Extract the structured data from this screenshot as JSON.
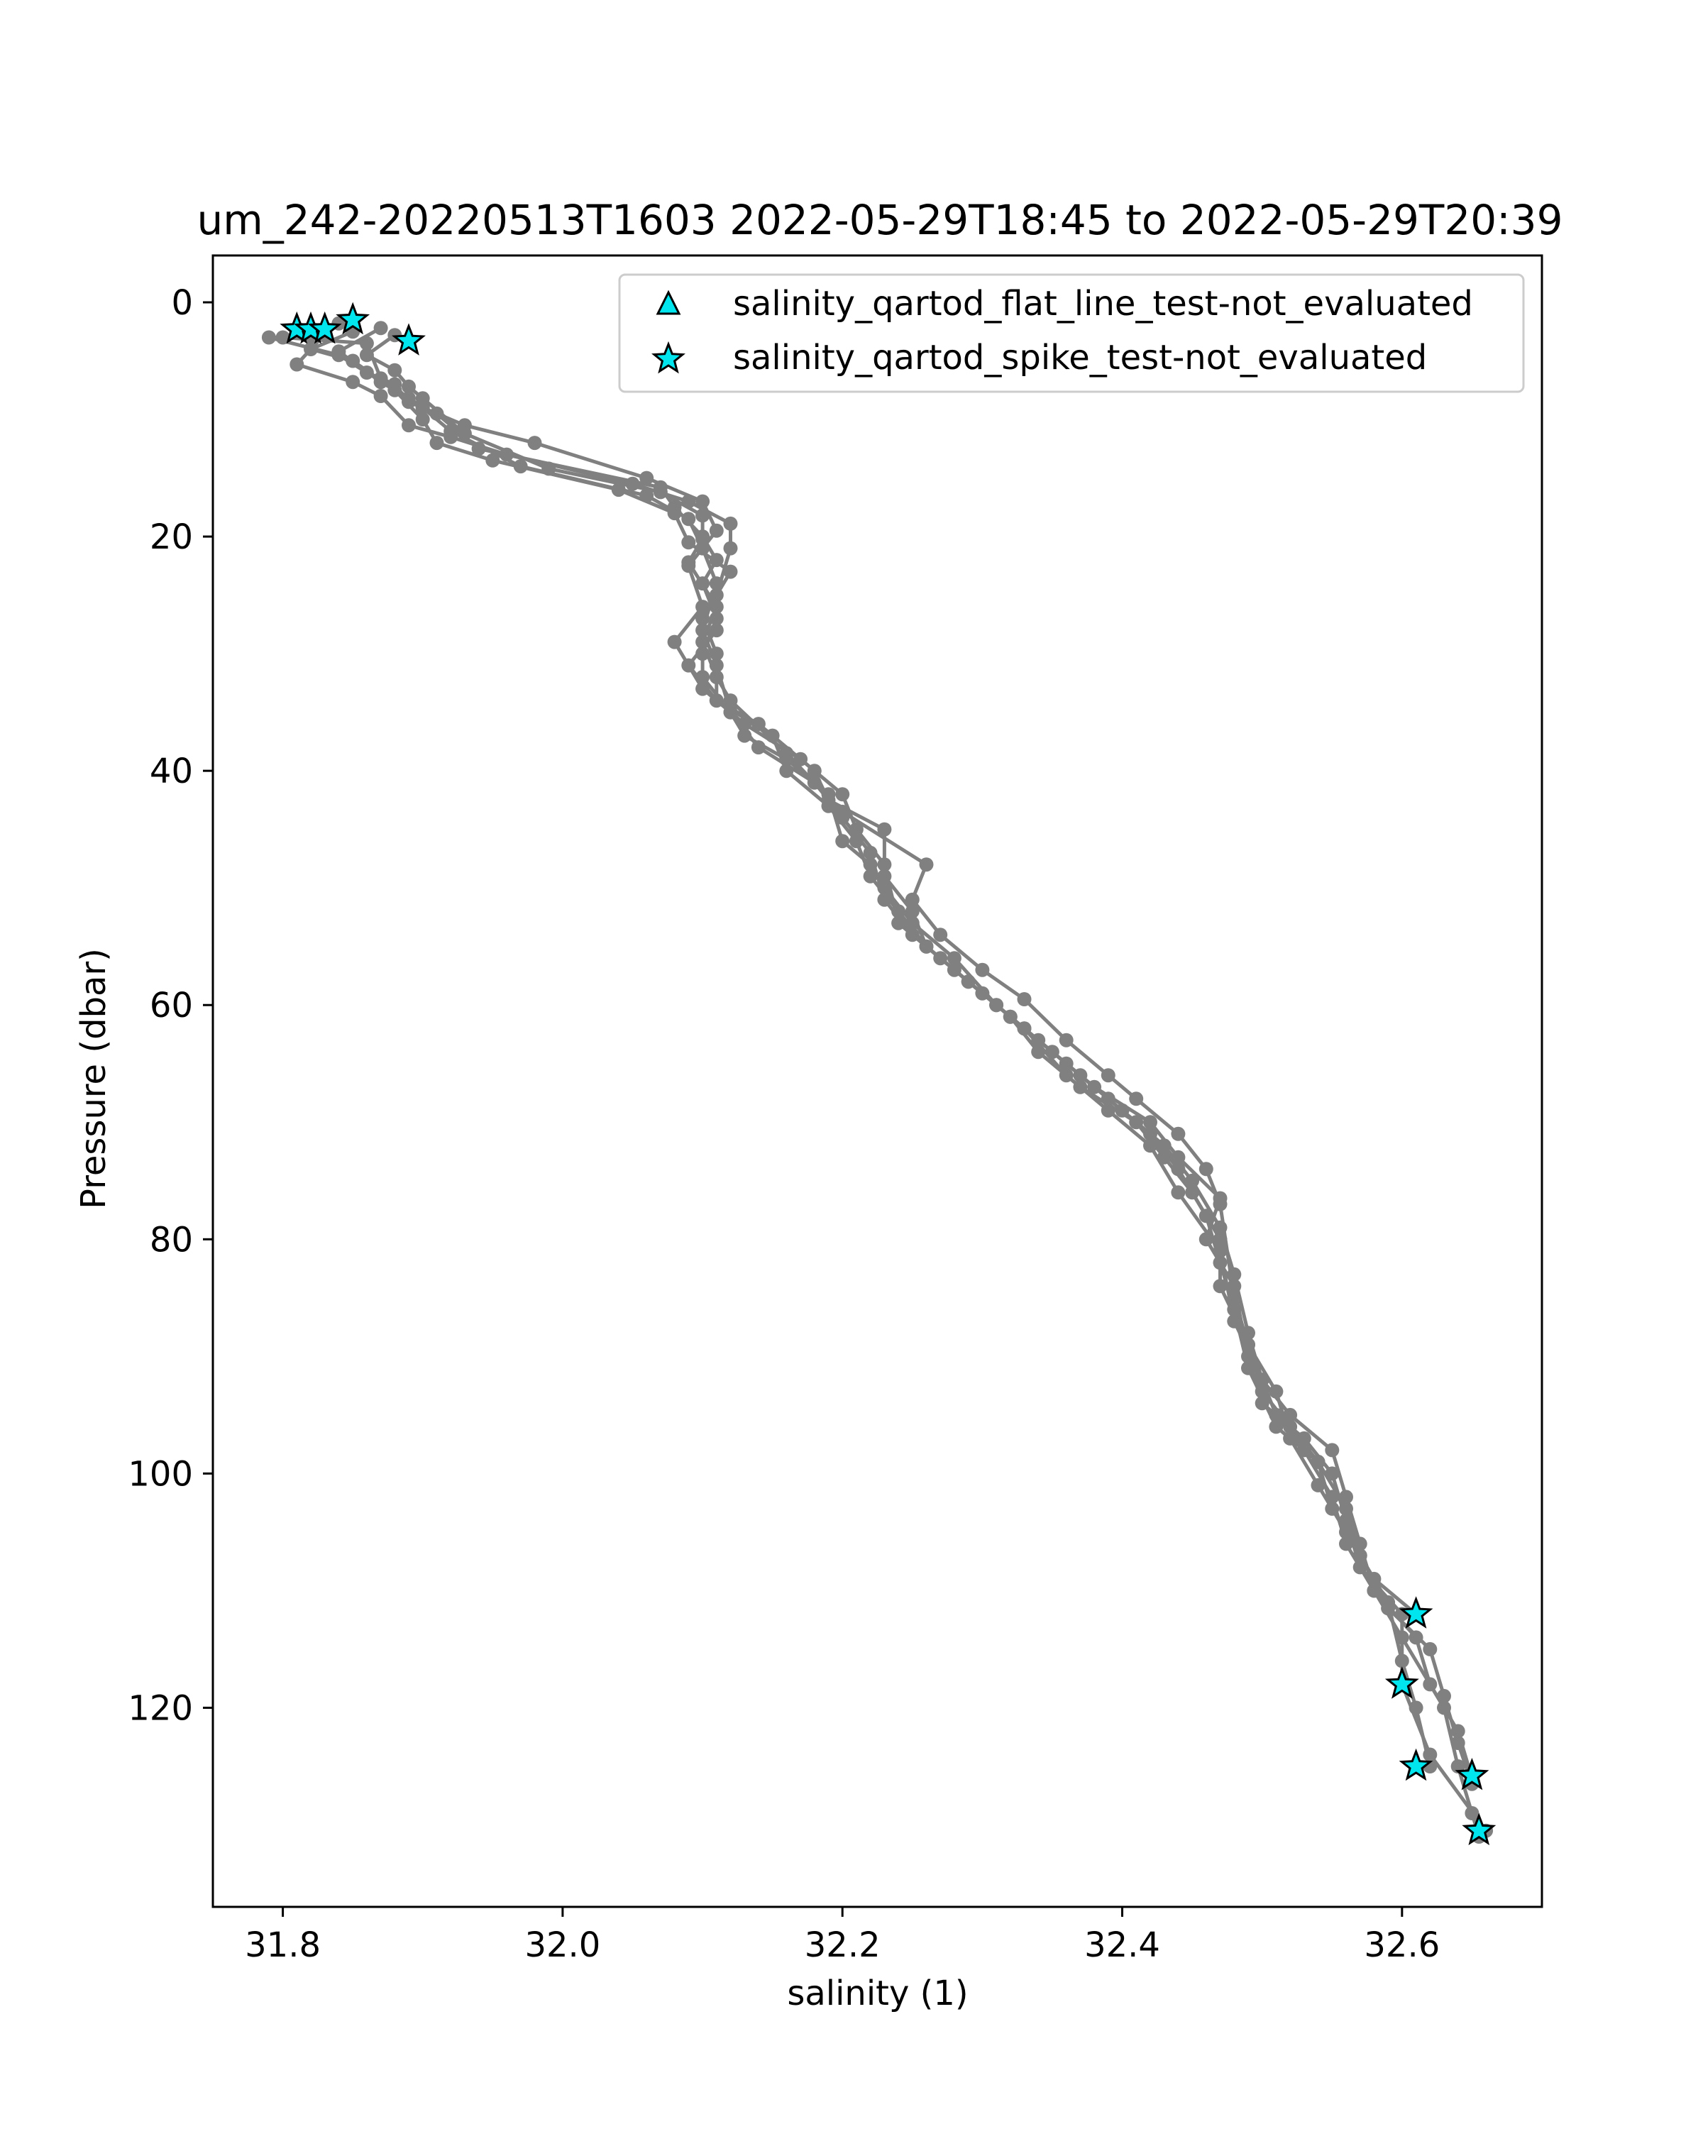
{
  "chart_data": {
    "type": "line",
    "title": "um_242-20220513T1603 2022-05-29T18:45 to 2022-05-29T20:39",
    "xlabel": "salinity (1)",
    "ylabel": "Pressure (dbar)",
    "xlim": [
      31.75,
      32.7
    ],
    "ylim": [
      137,
      -4
    ],
    "y_inverted": true,
    "xticks": [
      31.8,
      32.0,
      32.2,
      32.4,
      32.6
    ],
    "xtick_labels": [
      "31.8",
      "32.0",
      "32.2",
      "32.4",
      "32.6"
    ],
    "yticks": [
      0,
      20,
      40,
      60,
      80,
      100,
      120
    ],
    "ytick_labels": [
      "0",
      "20",
      "40",
      "60",
      "80",
      "100",
      "120"
    ],
    "grid": false,
    "legend_position": "top-right",
    "line_color": "#808080",
    "flag_fill": "#00e5ee",
    "legend": [
      {
        "label": "salinity_qartod_flat_line_test-not_evaluated",
        "marker": "triangle"
      },
      {
        "label": "salinity_qartod_spike_test-not_evaluated",
        "marker": "star"
      }
    ],
    "series": [
      {
        "points": [
          [
            31.82,
            3
          ],
          [
            31.79,
            3
          ],
          [
            31.84,
            4.5
          ],
          [
            31.86,
            6
          ],
          [
            31.88,
            7
          ],
          [
            31.89,
            8.5
          ],
          [
            31.91,
            9.5
          ],
          [
            31.94,
            12.5
          ],
          [
            32.07,
            15.8
          ],
          [
            32.08,
            17.5
          ],
          [
            32.1,
            20
          ],
          [
            32.11,
            22
          ],
          [
            32.1,
            24
          ],
          [
            32.11,
            27
          ],
          [
            32.1,
            30
          ],
          [
            32.1,
            32
          ],
          [
            32.12,
            35
          ],
          [
            32.14,
            38
          ],
          [
            32.18,
            41
          ],
          [
            32.2,
            44
          ],
          [
            32.22,
            47
          ],
          [
            32.23,
            51
          ],
          [
            32.25,
            54
          ],
          [
            32.28,
            57
          ],
          [
            32.31,
            60
          ],
          [
            32.34,
            63
          ],
          [
            32.37,
            66
          ],
          [
            32.4,
            69
          ],
          [
            32.43,
            72
          ],
          [
            32.45,
            75
          ],
          [
            32.47,
            79
          ],
          [
            32.48,
            83
          ],
          [
            32.49,
            88
          ],
          [
            32.5,
            92
          ],
          [
            32.52,
            95
          ],
          [
            32.55,
            98
          ],
          [
            32.56,
            102
          ],
          [
            32.57,
            106
          ],
          [
            32.58,
            110
          ],
          [
            32.61,
            114
          ],
          [
            32.62,
            118
          ],
          [
            32.64,
            122
          ],
          [
            32.65,
            126
          ]
        ]
      },
      {
        "points": [
          [
            31.83,
            2.7
          ],
          [
            31.81,
            5.3
          ],
          [
            31.85,
            6.8
          ],
          [
            31.87,
            8
          ],
          [
            31.89,
            10.5
          ],
          [
            31.92,
            11.5
          ],
          [
            31.96,
            13
          ],
          [
            32.05,
            15.5
          ],
          [
            32.09,
            17
          ],
          [
            32.12,
            18.9
          ],
          [
            32.12,
            21
          ],
          [
            32.11,
            25
          ],
          [
            32.11,
            28
          ],
          [
            32.09,
            31
          ],
          [
            32.11,
            34
          ],
          [
            32.15,
            37
          ],
          [
            32.16,
            40
          ],
          [
            32.19,
            43
          ],
          [
            32.21,
            46
          ],
          [
            32.22,
            49
          ],
          [
            32.24,
            52
          ],
          [
            32.26,
            55
          ],
          [
            32.29,
            58
          ],
          [
            32.32,
            61
          ],
          [
            32.35,
            64
          ],
          [
            32.38,
            67
          ],
          [
            32.42,
            70
          ],
          [
            32.44,
            73
          ],
          [
            32.47,
            76.5
          ],
          [
            32.46,
            80
          ],
          [
            32.48,
            84
          ],
          [
            32.49,
            90
          ],
          [
            32.5,
            94
          ],
          [
            32.53,
            97
          ],
          [
            32.55,
            100
          ],
          [
            32.56,
            104
          ],
          [
            32.57,
            108
          ],
          [
            32.6,
            112
          ],
          [
            32.6,
            118
          ],
          [
            32.62,
            124
          ],
          [
            32.66,
            130.5
          ]
        ]
      },
      {
        "points": [
          [
            31.84,
            1.8
          ],
          [
            31.8,
            3
          ],
          [
            31.86,
            3.5
          ],
          [
            31.87,
            6.5
          ],
          [
            31.9,
            9
          ],
          [
            31.93,
            10.5
          ],
          [
            31.98,
            12
          ],
          [
            32.06,
            15
          ],
          [
            32.1,
            17
          ],
          [
            32.11,
            19.5
          ],
          [
            32.09,
            22.5
          ],
          [
            32.1,
            26
          ],
          [
            32.08,
            29
          ],
          [
            32.1,
            33
          ],
          [
            32.13,
            36
          ],
          [
            32.17,
            39
          ],
          [
            32.2,
            42
          ],
          [
            32.21,
            45
          ],
          [
            32.23,
            48
          ],
          [
            32.24,
            53
          ],
          [
            32.27,
            56
          ],
          [
            32.3,
            59
          ],
          [
            32.33,
            62
          ],
          [
            32.36,
            65
          ],
          [
            32.39,
            68
          ],
          [
            32.42,
            71
          ],
          [
            32.44,
            74
          ],
          [
            32.46,
            78
          ],
          [
            32.47,
            82
          ],
          [
            32.48,
            86
          ],
          [
            32.49,
            91
          ],
          [
            32.51,
            96
          ],
          [
            32.54,
            99
          ],
          [
            32.55,
            103
          ],
          [
            32.57,
            107
          ],
          [
            32.59,
            111
          ],
          [
            32.6,
            116
          ],
          [
            32.61,
            120
          ],
          [
            32.62,
            125
          ]
        ]
      },
      {
        "points": [
          [
            31.85,
            2.5
          ],
          [
            31.82,
            4
          ],
          [
            31.85,
            5
          ],
          [
            31.88,
            7.5
          ],
          [
            31.9,
            10
          ],
          [
            31.91,
            12
          ],
          [
            31.95,
            13.5
          ],
          [
            32.04,
            16
          ],
          [
            32.08,
            18
          ],
          [
            32.09,
            20.5
          ],
          [
            32.12,
            23
          ],
          [
            32.1,
            27
          ],
          [
            32.11,
            30
          ],
          [
            32.11,
            34
          ],
          [
            32.14,
            36
          ],
          [
            32.18,
            40
          ],
          [
            32.19,
            42.5
          ],
          [
            32.23,
            45
          ],
          [
            32.23,
            49
          ],
          [
            32.25,
            52
          ],
          [
            32.26,
            55
          ],
          [
            32.29,
            58
          ],
          [
            32.32,
            61
          ],
          [
            32.34,
            64
          ],
          [
            32.37,
            67
          ],
          [
            32.41,
            70
          ],
          [
            32.43,
            73
          ],
          [
            32.45,
            76
          ],
          [
            32.47,
            80
          ],
          [
            32.47,
            84
          ],
          [
            32.49,
            89
          ],
          [
            32.51,
            93
          ],
          [
            32.52,
            97
          ],
          [
            32.54,
            101
          ],
          [
            32.56,
            105
          ],
          [
            32.58,
            109
          ],
          [
            32.61,
            112
          ]
        ]
      },
      {
        "points": [
          [
            31.87,
            2.2
          ],
          [
            31.84,
            4.2
          ],
          [
            31.87,
            6.8
          ],
          [
            31.89,
            8.2
          ],
          [
            31.9,
            9
          ],
          [
            31.92,
            11
          ],
          [
            31.97,
            14
          ],
          [
            32.06,
            16.5
          ],
          [
            32.09,
            18.5
          ],
          [
            32.1,
            21
          ],
          [
            32.11,
            24
          ],
          [
            32.1,
            28
          ],
          [
            32.11,
            31
          ],
          [
            32.12,
            35
          ],
          [
            32.13,
            37
          ],
          [
            32.16,
            39
          ],
          [
            32.19,
            42
          ],
          [
            32.2,
            46
          ],
          [
            32.22,
            48
          ],
          [
            32.23,
            50
          ],
          [
            32.25,
            53
          ],
          [
            32.28,
            56
          ],
          [
            32.31,
            60
          ],
          [
            32.33,
            62
          ],
          [
            32.36,
            66
          ],
          [
            32.39,
            69
          ],
          [
            32.42,
            72
          ],
          [
            32.44,
            76
          ],
          [
            32.47,
            81
          ],
          [
            32.48,
            87
          ],
          [
            32.5,
            92
          ],
          [
            32.51,
            95
          ],
          [
            32.53,
            98
          ],
          [
            32.55,
            102
          ],
          [
            32.56,
            106
          ],
          [
            32.58,
            110
          ],
          [
            32.6,
            114
          ],
          [
            32.63,
            120
          ],
          [
            32.64,
            125
          ],
          [
            32.65,
            129
          ],
          [
            32.655,
            131
          ]
        ]
      },
      {
        "points": [
          [
            31.88,
            2.8
          ],
          [
            31.86,
            4.5
          ],
          [
            31.88,
            5.8
          ],
          [
            31.89,
            7.2
          ],
          [
            31.9,
            8.2
          ],
          [
            31.93,
            11.2
          ],
          [
            31.99,
            14.2
          ],
          [
            32.07,
            16.2
          ],
          [
            32.1,
            18.2
          ],
          [
            32.1,
            20.2
          ],
          [
            32.09,
            22.2
          ],
          [
            32.11,
            26
          ],
          [
            32.1,
            29
          ],
          [
            32.11,
            32
          ],
          [
            32.12,
            34
          ],
          [
            32.16,
            38.5
          ],
          [
            32.2,
            43.5
          ],
          [
            32.26,
            48
          ],
          [
            32.25,
            51
          ],
          [
            32.27,
            54
          ],
          [
            32.3,
            57
          ],
          [
            32.33,
            59.5
          ],
          [
            32.36,
            63
          ],
          [
            32.39,
            66
          ],
          [
            32.41,
            68
          ],
          [
            32.44,
            71
          ],
          [
            32.46,
            74
          ],
          [
            32.47,
            77
          ],
          [
            32.48,
            85
          ],
          [
            32.49,
            89
          ],
          [
            32.5,
            93
          ],
          [
            32.52,
            96
          ],
          [
            32.54,
            99
          ],
          [
            32.56,
            103
          ],
          [
            32.57,
            107
          ],
          [
            32.59,
            111.5
          ],
          [
            32.62,
            115
          ],
          [
            32.63,
            119
          ],
          [
            32.64,
            123
          ],
          [
            32.65,
            126.5
          ]
        ]
      }
    ],
    "spike_flags": [
      [
        31.81,
        2.3
      ],
      [
        31.82,
        2.3
      ],
      [
        31.83,
        2.3
      ],
      [
        31.85,
        1.5
      ],
      [
        31.89,
        3.3
      ],
      [
        32.61,
        112
      ],
      [
        32.6,
        118
      ],
      [
        32.61,
        125
      ],
      [
        32.65,
        125.8
      ],
      [
        32.655,
        130.5
      ]
    ],
    "flat_line_flags": []
  }
}
